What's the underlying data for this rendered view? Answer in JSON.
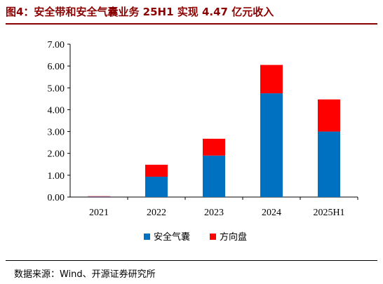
{
  "header": {
    "title": "图4：安全带和安全气囊业务 25H1 实现 4.47 亿元收入"
  },
  "footer": {
    "source": "数据来源：Wind、开源证券研究所"
  },
  "chart_data": {
    "type": "bar",
    "stacked": true,
    "title": "",
    "xlabel": "",
    "ylabel": "",
    "categories": [
      "2021",
      "2022",
      "2023",
      "2024",
      "2025H1"
    ],
    "series": [
      {
        "name": "安全气囊",
        "color": "#0070C0",
        "values": [
          0.02,
          0.93,
          1.9,
          4.75,
          3.0
        ]
      },
      {
        "name": "方向盘",
        "color": "#FF0000",
        "values": [
          0.02,
          0.55,
          0.77,
          1.3,
          1.47
        ]
      }
    ],
    "ylim": [
      0,
      7
    ],
    "yticks": [
      "0.00",
      "1.00",
      "2.00",
      "3.00",
      "4.00",
      "5.00",
      "6.00",
      "7.00"
    ],
    "grid": false,
    "legend_position": "bottom"
  }
}
